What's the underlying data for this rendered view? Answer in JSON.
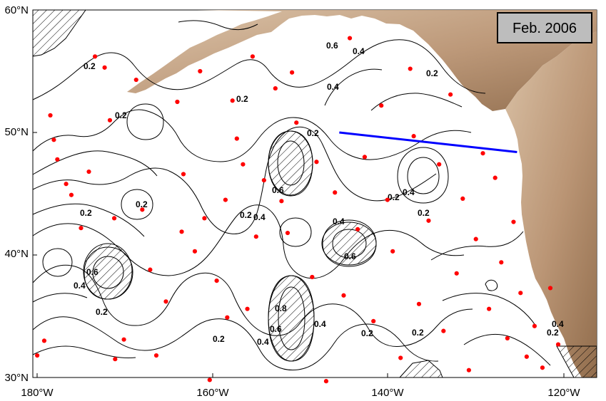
{
  "map": {
    "date_badge": "Feb. 2006",
    "contour_labels": [
      "0.2",
      "0.4",
      "0.6",
      "0.8"
    ],
    "lat_ticks": [
      "60°N",
      "50°N",
      "40°N",
      "30°N"
    ],
    "lon_ticks": [
      "180°W",
      "160°W",
      "140°W",
      "120°W"
    ],
    "colors": {
      "land": "#c8a98a",
      "land_dark": "#a57f5c",
      "observation_points": "#ff0000",
      "transect_line": "#0000ff",
      "contours": "#000000",
      "hatch": "#000000",
      "badge_fill": "#bdbdbd"
    },
    "transect": {
      "description_free_value": "blue line",
      "start": {
        "lon": -145,
        "lat": 50
      },
      "end": {
        "lon": -124.7,
        "lat": 48.4
      }
    },
    "observations": [
      {
        "lon": -179.5,
        "lat": 31.8
      },
      {
        "lon": -178.7,
        "lat": 33.0
      },
      {
        "lon": -178.0,
        "lat": 51.4
      },
      {
        "lon": -177.6,
        "lat": 49.4
      },
      {
        "lon": -177.2,
        "lat": 47.8
      },
      {
        "lon": -176.2,
        "lat": 45.8
      },
      {
        "lon": -175.6,
        "lat": 44.9
      },
      {
        "lon": -174.5,
        "lat": 42.2
      },
      {
        "lon": -173.6,
        "lat": 46.8
      },
      {
        "lon": -172.9,
        "lat": 56.2
      },
      {
        "lon": -171.8,
        "lat": 55.3
      },
      {
        "lon": -171.2,
        "lat": 51.0
      },
      {
        "lon": -170.7,
        "lat": 43.0
      },
      {
        "lon": -170.6,
        "lat": 31.5
      },
      {
        "lon": -169.6,
        "lat": 33.1
      },
      {
        "lon": -168.2,
        "lat": 54.3
      },
      {
        "lon": -167.5,
        "lat": 43.7
      },
      {
        "lon": -166.6,
        "lat": 38.8
      },
      {
        "lon": -165.9,
        "lat": 31.8
      },
      {
        "lon": -164.8,
        "lat": 36.2
      },
      {
        "lon": -163.5,
        "lat": 52.5
      },
      {
        "lon": -163.0,
        "lat": 41.9
      },
      {
        "lon": -162.8,
        "lat": 46.6
      },
      {
        "lon": -161.5,
        "lat": 40.3
      },
      {
        "lon": -160.9,
        "lat": 55.0
      },
      {
        "lon": -160.4,
        "lat": 43.0
      },
      {
        "lon": -159.8,
        "lat": 29.8
      },
      {
        "lon": -159.0,
        "lat": 37.9
      },
      {
        "lon": -158.0,
        "lat": 44.5
      },
      {
        "lon": -157.8,
        "lat": 34.9
      },
      {
        "lon": -157.2,
        "lat": 52.6
      },
      {
        "lon": -156.7,
        "lat": 49.5
      },
      {
        "lon": -156.0,
        "lat": 47.4
      },
      {
        "lon": -155.5,
        "lat": 35.6
      },
      {
        "lon": -154.9,
        "lat": 56.2
      },
      {
        "lon": -154.5,
        "lat": 41.5
      },
      {
        "lon": -153.6,
        "lat": 46.1
      },
      {
        "lon": -152.3,
        "lat": 53.6
      },
      {
        "lon": -151.6,
        "lat": 44.4
      },
      {
        "lon": -150.9,
        "lat": 41.8
      },
      {
        "lon": -150.4,
        "lat": 54.9
      },
      {
        "lon": -149.9,
        "lat": 50.8
      },
      {
        "lon": -148.1,
        "lat": 38.2
      },
      {
        "lon": -147.6,
        "lat": 47.6
      },
      {
        "lon": -146.5,
        "lat": 29.7
      },
      {
        "lon": -145.5,
        "lat": 45.1
      },
      {
        "lon": -144.5,
        "lat": 36.7
      },
      {
        "lon": -143.8,
        "lat": 57.7
      },
      {
        "lon": -142.9,
        "lat": 42.1
      },
      {
        "lon": -142.1,
        "lat": 48.0
      },
      {
        "lon": -141.1,
        "lat": 34.6
      },
      {
        "lon": -140.2,
        "lat": 52.2
      },
      {
        "lon": -139.5,
        "lat": 44.5
      },
      {
        "lon": -138.9,
        "lat": 40.3
      },
      {
        "lon": -138.0,
        "lat": 31.6
      },
      {
        "lon": -136.9,
        "lat": 55.2
      },
      {
        "lon": -136.5,
        "lat": 49.7
      },
      {
        "lon": -135.9,
        "lat": 36.0
      },
      {
        "lon": -134.8,
        "lat": 42.8
      },
      {
        "lon": -133.6,
        "lat": 47.4
      },
      {
        "lon": -133.1,
        "lat": 33.8
      },
      {
        "lon": -132.3,
        "lat": 53.1
      },
      {
        "lon": -131.6,
        "lat": 38.5
      },
      {
        "lon": -130.9,
        "lat": 44.6
      },
      {
        "lon": -130.2,
        "lat": 30.6
      },
      {
        "lon": -129.4,
        "lat": 41.3
      },
      {
        "lon": -128.6,
        "lat": 48.3
      },
      {
        "lon": -127.9,
        "lat": 35.6
      },
      {
        "lon": -127.2,
        "lat": 46.3
      },
      {
        "lon": -126.5,
        "lat": 39.4
      },
      {
        "lon": -125.8,
        "lat": 33.2
      },
      {
        "lon": -125.1,
        "lat": 42.7
      },
      {
        "lon": -124.3,
        "lat": 36.9
      },
      {
        "lon": -123.6,
        "lat": 31.7
      },
      {
        "lon": -122.7,
        "lat": 34.2
      },
      {
        "lon": -121.8,
        "lat": 30.8
      },
      {
        "lon": -120.9,
        "lat": 37.3
      },
      {
        "lon": -120.0,
        "lat": 32.7
      }
    ]
  }
}
